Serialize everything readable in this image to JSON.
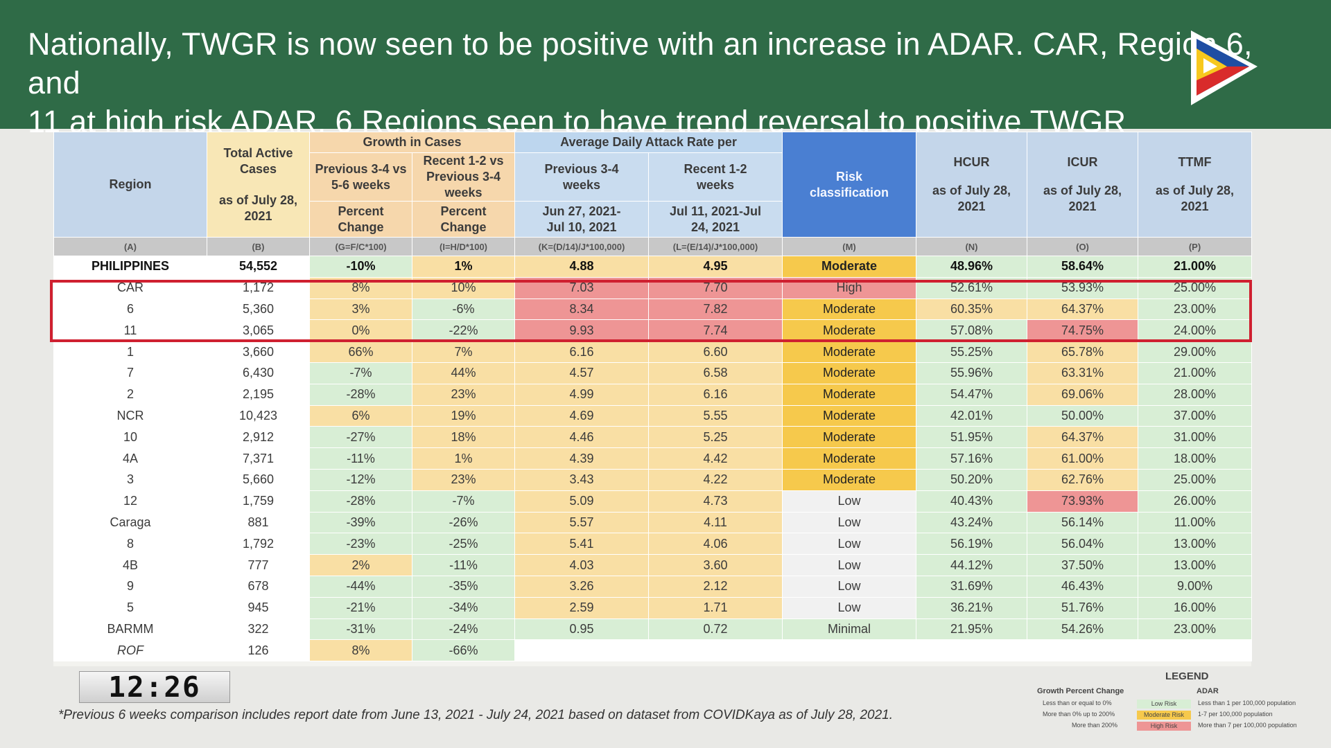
{
  "banner": {
    "title_line1": "Nationally, TWGR is now seen to be positive with an increase in ADAR. CAR, Region 6, and",
    "title_line2": "11 at high risk ADAR. 6 Regions seen to have trend reversal to positive TWGR",
    "bg_color": "#2f6b47"
  },
  "table": {
    "headers": {
      "region": "Region",
      "total_active": "Total Active Cases",
      "total_active_date": "as of July 28, 2021",
      "growth": "Growth in Cases",
      "growth_prev": "Previous 3-4 vs 5-6 weeks",
      "growth_recent": "Recent 1-2 vs Previous 3-4 weeks",
      "percent_change": "Percent Change",
      "adar": "Average Daily Attack Rate per",
      "adar_prev": "Previous 3-4 weeks",
      "adar_recent": "Recent 1-2 weeks",
      "adar_prev_dates": "Jun 27, 2021-Jul 10, 2021",
      "adar_recent_dates": "Jul 11, 2021-Jul 24, 2021",
      "risk": "Risk classification",
      "hcur": "HCUR",
      "icur": "ICUR",
      "ttmf": "TTMF",
      "as_of": "as of July 28, 2021"
    },
    "codes": [
      "(A)",
      "(B)",
      "(G=F/C*100)",
      "(I=H/D*100)",
      "(K=(D/14)/J*100,000)",
      "(L=(E/14)/J*100,000)",
      "(M)",
      "(N)",
      "(O)",
      "(P)"
    ],
    "rows": [
      {
        "region": "PHILIPPINES",
        "active": "54,552",
        "g1": "-10%",
        "g2": "1%",
        "a1": "4.88",
        "a2": "4.95",
        "risk": "Moderate",
        "hcur": "48.96%",
        "icur": "58.64%",
        "ttmf": "21.00%"
      },
      {
        "region": "CAR",
        "active": "1,172",
        "g1": "8%",
        "g2": "10%",
        "a1": "7.03",
        "a2": "7.70",
        "risk": "High",
        "hcur": "52.61%",
        "icur": "53.93%",
        "ttmf": "25.00%"
      },
      {
        "region": "6",
        "active": "5,360",
        "g1": "3%",
        "g2": "-6%",
        "a1": "8.34",
        "a2": "7.82",
        "risk": "Moderate",
        "hcur": "60.35%",
        "icur": "64.37%",
        "ttmf": "23.00%"
      },
      {
        "region": "11",
        "active": "3,065",
        "g1": "0%",
        "g2": "-22%",
        "a1": "9.93",
        "a2": "7.74",
        "risk": "Moderate",
        "hcur": "57.08%",
        "icur": "74.75%",
        "ttmf": "24.00%"
      },
      {
        "region": "1",
        "active": "3,660",
        "g1": "66%",
        "g2": "7%",
        "a1": "6.16",
        "a2": "6.60",
        "risk": "Moderate",
        "hcur": "55.25%",
        "icur": "65.78%",
        "ttmf": "29.00%"
      },
      {
        "region": "7",
        "active": "6,430",
        "g1": "-7%",
        "g2": "44%",
        "a1": "4.57",
        "a2": "6.58",
        "risk": "Moderate",
        "hcur": "55.96%",
        "icur": "63.31%",
        "ttmf": "21.00%"
      },
      {
        "region": "2",
        "active": "2,195",
        "g1": "-28%",
        "g2": "23%",
        "a1": "4.99",
        "a2": "6.16",
        "risk": "Moderate",
        "hcur": "54.47%",
        "icur": "69.06%",
        "ttmf": "28.00%"
      },
      {
        "region": "NCR",
        "active": "10,423",
        "g1": "6%",
        "g2": "19%",
        "a1": "4.69",
        "a2": "5.55",
        "risk": "Moderate",
        "hcur": "42.01%",
        "icur": "50.00%",
        "ttmf": "37.00%"
      },
      {
        "region": "10",
        "active": "2,912",
        "g1": "-27%",
        "g2": "18%",
        "a1": "4.46",
        "a2": "5.25",
        "risk": "Moderate",
        "hcur": "51.95%",
        "icur": "64.37%",
        "ttmf": "31.00%"
      },
      {
        "region": "4A",
        "active": "7,371",
        "g1": "-11%",
        "g2": "1%",
        "a1": "4.39",
        "a2": "4.42",
        "risk": "Moderate",
        "hcur": "57.16%",
        "icur": "61.00%",
        "ttmf": "18.00%"
      },
      {
        "region": "3",
        "active": "5,660",
        "g1": "-12%",
        "g2": "23%",
        "a1": "3.43",
        "a2": "4.22",
        "risk": "Moderate",
        "hcur": "50.20%",
        "icur": "62.76%",
        "ttmf": "25.00%"
      },
      {
        "region": "12",
        "active": "1,759",
        "g1": "-28%",
        "g2": "-7%",
        "a1": "5.09",
        "a2": "4.73",
        "risk": "Low",
        "hcur": "40.43%",
        "icur": "73.93%",
        "ttmf": "26.00%"
      },
      {
        "region": "Caraga",
        "active": "881",
        "g1": "-39%",
        "g2": "-26%",
        "a1": "5.57",
        "a2": "4.11",
        "risk": "Low",
        "hcur": "43.24%",
        "icur": "56.14%",
        "ttmf": "11.00%"
      },
      {
        "region": "8",
        "active": "1,792",
        "g1": "-23%",
        "g2": "-25%",
        "a1": "5.41",
        "a2": "4.06",
        "risk": "Low",
        "hcur": "56.19%",
        "icur": "56.04%",
        "ttmf": "13.00%"
      },
      {
        "region": "4B",
        "active": "777",
        "g1": "2%",
        "g2": "-11%",
        "a1": "4.03",
        "a2": "3.60",
        "risk": "Low",
        "hcur": "44.12%",
        "icur": "37.50%",
        "ttmf": "13.00%"
      },
      {
        "region": "9",
        "active": "678",
        "g1": "-44%",
        "g2": "-35%",
        "a1": "3.26",
        "a2": "2.12",
        "risk": "Low",
        "hcur": "31.69%",
        "icur": "46.43%",
        "ttmf": "9.00%"
      },
      {
        "region": "5",
        "active": "945",
        "g1": "-21%",
        "g2": "-34%",
        "a1": "2.59",
        "a2": "1.71",
        "risk": "Low",
        "hcur": "36.21%",
        "icur": "51.76%",
        "ttmf": "16.00%"
      },
      {
        "region": "BARMM",
        "active": "322",
        "g1": "-31%",
        "g2": "-24%",
        "a1": "0.95",
        "a2": "0.72",
        "risk": "Minimal",
        "hcur": "21.95%",
        "icur": "54.26%",
        "ttmf": "23.00%"
      },
      {
        "region": "ROF",
        "active": "126",
        "g1": "8%",
        "g2": "-66%",
        "a1": "",
        "a2": "",
        "risk": "",
        "hcur": "",
        "icur": "",
        "ttmf": ""
      }
    ]
  },
  "clock": "12:26",
  "footnote": "*Previous 6 weeks comparison includes report date from June 13, 2021 - July 24, 2021 based on dataset from COVIDKaya as of July 28, 2021.",
  "legend": {
    "title": "LEGEND",
    "growth_header": "Growth Percent Change",
    "adar_header": "ADAR",
    "items": [
      {
        "growth": "Less than or equal to 0%",
        "label": "Low Risk",
        "adar": "Less than 1 per 100,000 population",
        "color": "#d8eed5"
      },
      {
        "growth": "More than 0% up to 200%",
        "label": "Moderate Risk",
        "adar": "1-7 per 100,000 population",
        "color": "#f6c94c"
      },
      {
        "growth": "More than 200%",
        "label": "High Risk",
        "adar": "More than 7 per 100,000 population",
        "color": "#ee9595"
      }
    ]
  }
}
